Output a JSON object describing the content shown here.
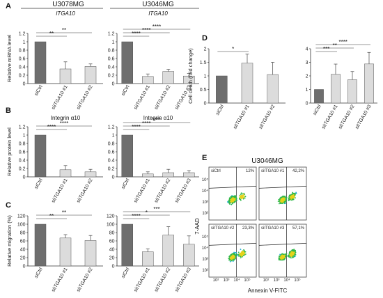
{
  "letters": [
    "A",
    "B",
    "C",
    "D",
    "E"
  ],
  "panel_titles": {
    "U3078MG": "U3078MG",
    "U3046MG": "U3046MG",
    "E": "U3046MG"
  },
  "chart_data": [
    {
      "id": "A1",
      "letter": "A",
      "type": "bar",
      "title": "U3078MG",
      "subtitle": "ITGA10",
      "ylabel": "Relative mRNA level",
      "categories": [
        "siCtrl",
        "siITGA10 #1",
        "siITGA10 #2"
      ],
      "values": [
        1.0,
        0.35,
        0.41
      ],
      "errors": [
        0.0,
        0.17,
        0.06
      ],
      "ylim": [
        0,
        1.2
      ],
      "yticks": [
        0,
        0.2,
        0.4,
        0.6,
        0.8,
        1.0,
        1.2
      ],
      "significance": [
        {
          "from": 0,
          "to": 1,
          "label": "**"
        },
        {
          "from": 0,
          "to": 2,
          "label": "**"
        }
      ]
    },
    {
      "id": "A2",
      "letter": "",
      "type": "bar",
      "title": "U3046MG",
      "subtitle": "ITGA10",
      "ylabel": "",
      "categories": [
        "siCtrl",
        "siITGA10 #1",
        "siITGA10 #2",
        "siITGA10 #3"
      ],
      "values": [
        1.0,
        0.17,
        0.29,
        0.18
      ],
      "errors": [
        0.0,
        0.06,
        0.05,
        0.06
      ],
      "ylim": [
        0,
        1.2
      ],
      "yticks": [
        0,
        0.2,
        0.4,
        0.6,
        0.8,
        1.0,
        1.2
      ],
      "significance": [
        {
          "from": 0,
          "to": 1,
          "label": "****"
        },
        {
          "from": 0,
          "to": 2,
          "label": "****"
        },
        {
          "from": 0,
          "to": 3,
          "label": "****"
        }
      ]
    },
    {
      "id": "B1",
      "letter": "B",
      "type": "bar",
      "title": "",
      "subtitle": "Integrin α10",
      "ylabel": "Relative protein level",
      "categories": [
        "siCtrl",
        "siITGA10 #1",
        "siITGA10 #2"
      ],
      "values": [
        1.0,
        0.17,
        0.12
      ],
      "errors": [
        0.0,
        0.1,
        0.06
      ],
      "ylim": [
        0,
        1.2
      ],
      "yticks": [
        0,
        0.2,
        0.4,
        0.6,
        0.8,
        1.0,
        1.2
      ],
      "significance": [
        {
          "from": 0,
          "to": 1,
          "label": "****"
        },
        {
          "from": 0,
          "to": 2,
          "label": "****"
        }
      ]
    },
    {
      "id": "B2",
      "letter": "",
      "type": "bar",
      "title": "",
      "subtitle": "Integrin α10",
      "ylabel": "",
      "categories": [
        "siCtrl",
        "siITGA10 #1",
        "siITGA10 #2",
        "siITGA10 #3"
      ],
      "values": [
        1.0,
        0.07,
        0.1,
        0.1
      ],
      "errors": [
        0.0,
        0.05,
        0.08,
        0.05
      ],
      "ylim": [
        0,
        1.2
      ],
      "yticks": [
        0,
        0.2,
        0.4,
        0.6,
        0.8,
        1.0,
        1.2
      ],
      "significance": [
        {
          "from": 0,
          "to": 1,
          "label": "****"
        },
        {
          "from": 0,
          "to": 2,
          "label": "****"
        },
        {
          "from": 0,
          "to": 3,
          "label": "****"
        }
      ]
    },
    {
      "id": "C1",
      "letter": "C",
      "type": "bar",
      "title": "",
      "subtitle": "",
      "ylabel": "Relative migration (%)",
      "categories": [
        "siCtrl",
        "siITGA10 #1",
        "siITGA10 #2"
      ],
      "values": [
        100,
        67,
        61
      ],
      "errors": [
        0,
        8,
        12
      ],
      "ylim": [
        0,
        120
      ],
      "yticks": [
        0,
        20,
        40,
        60,
        80,
        100,
        120
      ],
      "significance": [
        {
          "from": 0,
          "to": 1,
          "label": "**"
        },
        {
          "from": 0,
          "to": 2,
          "label": "**"
        }
      ]
    },
    {
      "id": "C2",
      "letter": "",
      "type": "bar",
      "title": "",
      "subtitle": "",
      "ylabel": "",
      "categories": [
        "siCtrl",
        "siITGA10 #1",
        "siITGA10 #2",
        "siITGA10 #3"
      ],
      "values": [
        100,
        34,
        74,
        52
      ],
      "errors": [
        0,
        7,
        20,
        20
      ],
      "ylim": [
        0,
        120
      ],
      "yticks": [
        0,
        20,
        40,
        60,
        80,
        100,
        120
      ],
      "significance": [
        {
          "from": 0,
          "to": 1,
          "label": "****"
        },
        {
          "from": 0,
          "to": 2,
          "label": "*"
        },
        {
          "from": 0,
          "to": 3,
          "label": "***"
        }
      ]
    },
    {
      "id": "D1",
      "letter": "D",
      "type": "bar",
      "title": "",
      "subtitle": "",
      "ylabel": "Cell death (fold change)",
      "categories": [
        "siCtrl",
        "siITGA10 #1",
        "siITGA10 #2"
      ],
      "values": [
        1.0,
        1.47,
        1.05
      ],
      "errors": [
        0.0,
        0.33,
        0.45
      ],
      "ylim": [
        0,
        2
      ],
      "yticks": [
        0,
        0.5,
        1.0,
        1.5,
        2.0
      ],
      "significance": [
        {
          "from": 0,
          "to": 1,
          "label": "*"
        }
      ]
    },
    {
      "id": "D2",
      "letter": "",
      "type": "bar",
      "title": "",
      "subtitle": "",
      "ylabel": "",
      "categories": [
        "siCtrl",
        "siITGA10 #1",
        "siITGA10 #2",
        "siITGA10 #3"
      ],
      "values": [
        1.0,
        2.12,
        1.72,
        2.88
      ],
      "errors": [
        0.0,
        0.75,
        0.6,
        0.85
      ],
      "ylim": [
        0,
        4
      ],
      "yticks": [
        0,
        1,
        2,
        3,
        4
      ],
      "significance": [
        {
          "from": 0,
          "to": 1,
          "label": "***"
        },
        {
          "from": 0,
          "to": 2,
          "label": "**"
        },
        {
          "from": 0,
          "to": 3,
          "label": "****"
        }
      ]
    }
  ],
  "flow": {
    "title": "U3046MG",
    "ylabel": "7-AAD",
    "xlabel": "Annexin V-FITC",
    "panels": [
      {
        "name": "siCtrl",
        "percent": "12%"
      },
      {
        "name": "siITGA10 #1",
        "percent": "42,2%"
      },
      {
        "name": "siITGA10 #2",
        "percent": "23,3%"
      },
      {
        "name": "siITGA10 #3",
        "percent": "57,1%"
      }
    ],
    "xticks": [
      "10¹",
      "10²",
      "10³",
      "10⁴",
      "10⁵"
    ],
    "yticks": [
      "10¹",
      "10²",
      "10³",
      "10⁴",
      "10⁵"
    ]
  },
  "colors": {
    "ctrl": "#6e6e6e",
    "si": "#dcdcdc",
    "axis": "#333333"
  }
}
